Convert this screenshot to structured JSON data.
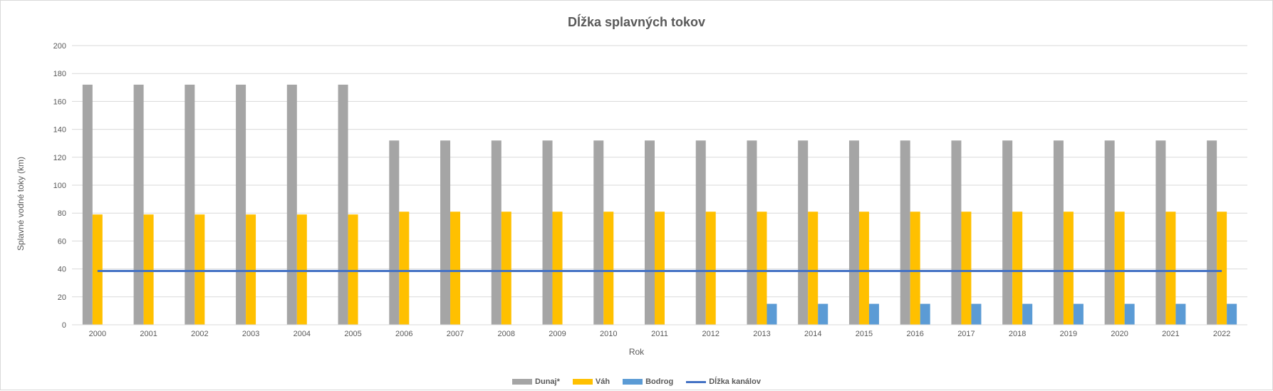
{
  "chart_data": {
    "type": "bar",
    "title": "Dĺžka splavných tokov",
    "xlabel": "Rok",
    "ylabel": "Splavné vodné toky (km)",
    "ylim": [
      0,
      200
    ],
    "yticks": [
      0,
      20,
      40,
      60,
      80,
      100,
      120,
      140,
      160,
      180,
      200
    ],
    "grid": true,
    "legend_position": "bottom",
    "categories": [
      "2000",
      "2001",
      "2002",
      "2003",
      "2004",
      "2005",
      "2006",
      "2007",
      "2008",
      "2009",
      "2010",
      "2011",
      "2012",
      "2013",
      "2014",
      "2015",
      "2016",
      "2017",
      "2018",
      "2019",
      "2020",
      "2021",
      "2022"
    ],
    "series": [
      {
        "name": "Dunaj*",
        "kind": "bar",
        "color": "#a5a5a5",
        "values": [
          172,
          172,
          172,
          172,
          172,
          172,
          132,
          132,
          132,
          132,
          132,
          132,
          132,
          132,
          132,
          132,
          132,
          132,
          132,
          132,
          132,
          132,
          132
        ]
      },
      {
        "name": "Váh",
        "kind": "bar",
        "color": "#ffc000",
        "values": [
          79,
          79,
          79,
          79,
          79,
          79,
          81,
          81,
          81,
          81,
          81,
          81,
          81,
          81,
          81,
          81,
          81,
          81,
          81,
          81,
          81,
          81,
          81
        ]
      },
      {
        "name": "Bodrog",
        "kind": "bar",
        "color": "#5b9bd5",
        "values": [
          0,
          0,
          0,
          0,
          0,
          0,
          0,
          0,
          0,
          0,
          0,
          0,
          0,
          15,
          15,
          15,
          15,
          15,
          15,
          15,
          15,
          15,
          15
        ]
      },
      {
        "name": "Dĺžka kanálov",
        "kind": "line",
        "color": "#4472c4",
        "values": [
          38.5,
          38.5,
          38.5,
          38.5,
          38.5,
          38.5,
          38.5,
          38.5,
          38.5,
          38.5,
          38.5,
          38.5,
          38.5,
          38.5,
          38.5,
          38.5,
          38.5,
          38.5,
          38.5,
          38.5,
          38.5,
          38.5,
          38.5
        ]
      }
    ]
  }
}
